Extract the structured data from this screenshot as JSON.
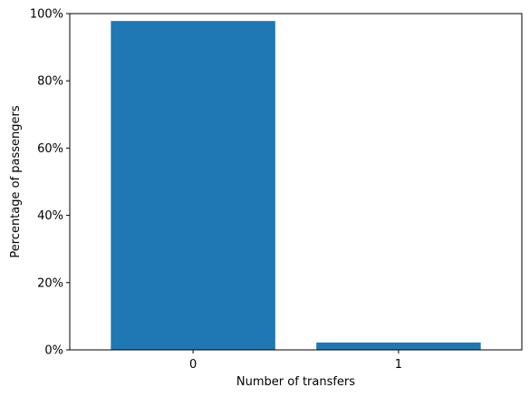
{
  "chart_data": {
    "type": "bar",
    "categories": [
      "0",
      "1"
    ],
    "values": [
      97.8,
      2.2
    ],
    "xlabel": "Number of transfers",
    "ylabel": "Percentage of passengers",
    "ylim": [
      0,
      100
    ],
    "yticks": [
      0,
      20,
      40,
      60,
      80,
      100
    ],
    "ytick_labels": [
      "0%",
      "20%",
      "40%",
      "60%",
      "80%",
      "100%"
    ],
    "grid": false,
    "bar_color": "#1f77b4"
  }
}
